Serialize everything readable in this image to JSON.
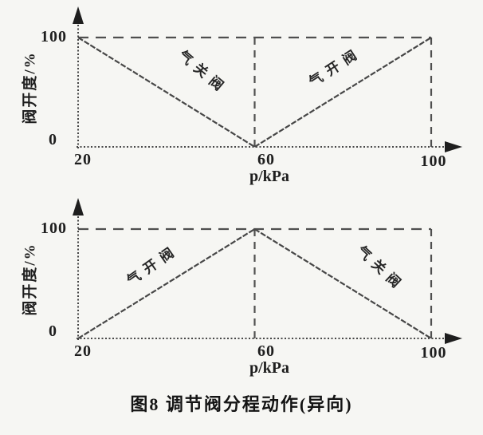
{
  "figure": {
    "caption": "图8  调节阀分程动作(异向)"
  },
  "colors": {
    "ink": "#1e1e1e",
    "line": "#474747",
    "dash": "#4f4f4f",
    "paper": "#f6f6f3"
  },
  "chart_data": [
    {
      "type": "line",
      "title": "",
      "xlabel": "p/kPa",
      "ylabel": "阀开度/%",
      "xlim": [
        20,
        100
      ],
      "ylim": [
        0,
        100
      ],
      "x_ticks": [
        20,
        60,
        100
      ],
      "y_ticks": [
        0,
        100
      ],
      "grid": false,
      "legend_position": "none",
      "ticks": {
        "y100": "100",
        "y0": "0",
        "x20": "20",
        "x60": "60",
        "x100": "100"
      },
      "reference_lines": {
        "horizontal_y": 100,
        "vertical_x": [
          60,
          100
        ]
      },
      "series": [
        {
          "name": "气关阀",
          "points": [
            [
              20,
              100
            ],
            [
              60,
              0
            ]
          ]
        },
        {
          "name": "气开阀",
          "points": [
            [
              60,
              0
            ],
            [
              100,
              100
            ]
          ]
        }
      ]
    },
    {
      "type": "line",
      "title": "",
      "xlabel": "p/kPa",
      "ylabel": "阀开度/%",
      "xlim": [
        20,
        100
      ],
      "ylim": [
        0,
        100
      ],
      "x_ticks": [
        20,
        60,
        100
      ],
      "y_ticks": [
        0,
        100
      ],
      "grid": false,
      "legend_position": "none",
      "ticks": {
        "y100": "100",
        "y0": "0",
        "x20": "20",
        "x60": "60",
        "x100": "100"
      },
      "reference_lines": {
        "horizontal_y": 100,
        "vertical_x": [
          60,
          100
        ]
      },
      "series": [
        {
          "name": "气开阀",
          "points": [
            [
              20,
              0
            ],
            [
              60,
              100
            ]
          ]
        },
        {
          "name": "气关阀",
          "points": [
            [
              60,
              100
            ],
            [
              100,
              0
            ]
          ]
        }
      ]
    }
  ]
}
